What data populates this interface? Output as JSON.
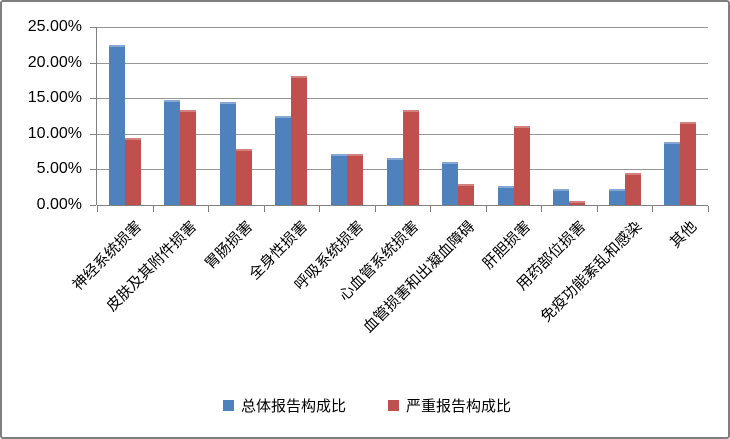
{
  "chart_data": {
    "type": "bar",
    "title": "",
    "xlabel": "",
    "ylabel": "",
    "categories": [
      "神经系统损害",
      "皮肤及其附件损害",
      "胃肠损害",
      "全身性损害",
      "呼吸系统损害",
      "心血管系统损害",
      "血管损害和出凝血障碍",
      "肝胆损害",
      "用药部位损害",
      "免疫功能紊乱和感染",
      "其他"
    ],
    "series": [
      {
        "name": "总体报告构成比",
        "color": "#4f81bd",
        "values": [
          22.5,
          14.7,
          14.5,
          12.5,
          7.1,
          6.6,
          6.1,
          2.6,
          2.3,
          2.2,
          8.9
        ]
      },
      {
        "name": "严重报告构成比",
        "color": "#c0504d",
        "values": [
          9.4,
          13.3,
          7.8,
          18.1,
          7.2,
          13.4,
          3.0,
          11.1,
          0.6,
          4.5,
          11.6
        ]
      }
    ],
    "ylim": [
      0,
      25
    ],
    "ytick_step": 5,
    "ytick_labels": [
      "0.00%",
      "5.00%",
      "10.00%",
      "15.00%",
      "20.00%",
      "25.00%"
    ],
    "value_unit": "%",
    "grid": true,
    "legend_position": "bottom"
  },
  "colors": {
    "series_blue": "#4f81bd",
    "series_red": "#c0504d",
    "gridline": "#969696",
    "axis": "#808080",
    "frame_border": "#7f7f7f",
    "text": "#000000"
  }
}
